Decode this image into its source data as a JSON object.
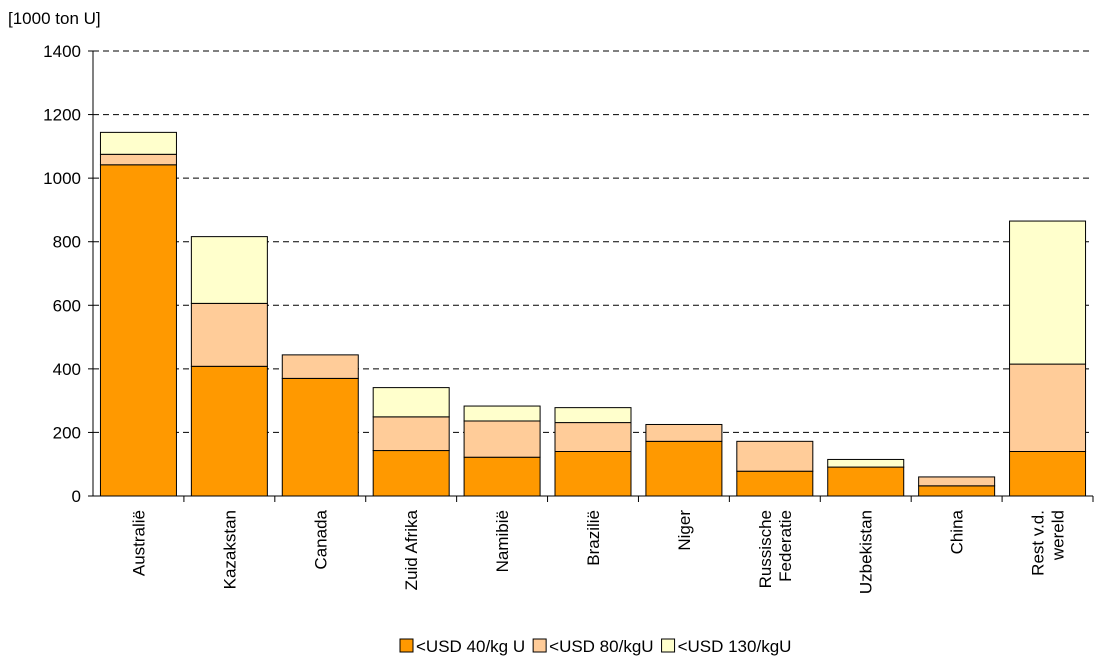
{
  "chart_data": {
    "type": "bar",
    "stacked": true,
    "ylabel": "[1000 ton U]",
    "ylim": [
      0,
      1400
    ],
    "yticks": [
      0,
      200,
      400,
      600,
      800,
      1000,
      1200,
      1400
    ],
    "grid": "horizontal dashed",
    "legend_position": "bottom",
    "categories": [
      [
        "Australië"
      ],
      [
        "Kazakstan"
      ],
      [
        "Canada"
      ],
      [
        "Zuid Afrika"
      ],
      [
        "Namibië"
      ],
      [
        "Brazilië"
      ],
      [
        "Niger"
      ],
      [
        "Russische",
        "Federatie"
      ],
      [
        "Uzbekistan"
      ],
      [
        "China"
      ],
      [
        "Rest v.d.",
        "wereld"
      ]
    ],
    "series": [
      {
        "name": "<USD 40/kg U",
        "color": "#ff9900",
        "values": [
          1042,
          408,
          370,
          143,
          122,
          140,
          172,
          78,
          91,
          32,
          140
        ]
      },
      {
        "name": "<USD 80/kgU",
        "color": "#ffcc99",
        "values": [
          33,
          198,
          74,
          106,
          114,
          91,
          53,
          94,
          0,
          28,
          275
        ]
      },
      {
        "name": "<USD 130/kgU",
        "color": "#ffffcc",
        "values": [
          69,
          210,
          0,
          92,
          47,
          47,
          0,
          0,
          24,
          0,
          450
        ]
      }
    ]
  }
}
